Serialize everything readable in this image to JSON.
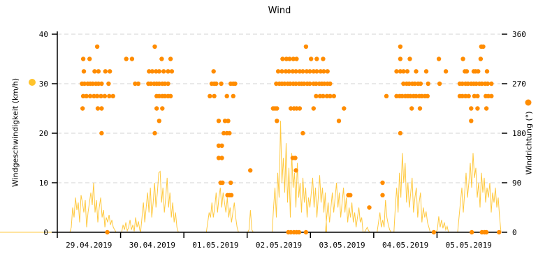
{
  "title": "Wind",
  "colors": {
    "speed_line": "#FFC32B",
    "direction_dot": "#FF8C00",
    "grid": "#D3D3D3",
    "axis": "#000000"
  },
  "chart_data": {
    "type": "line+scatter",
    "title": "Wind",
    "x_axis": {
      "labels": [
        "29.04.2019",
        "30.04.2019",
        "01.05.2019",
        "02.05.2019",
        "03.05.2019",
        "04.05.2019",
        "05.05.2019"
      ],
      "range_days": 7,
      "grid": "off"
    },
    "left_axis": {
      "label": "Windgeschwindigkeit (km/h)",
      "ticks": [
        0,
        10,
        20,
        30,
        40
      ],
      "range": [
        0,
        40
      ],
      "grid": "horizontal-dashed"
    },
    "right_axis": {
      "label": "Windrichtung (°)",
      "ticks": [
        0,
        90,
        180,
        270,
        360
      ],
      "range": [
        0,
        360
      ]
    },
    "legend": "colored dot beside each axis marks its series",
    "series": [
      {
        "name": "Windgeschwindigkeit",
        "type": "line",
        "axis": "left",
        "color": "#FFC32B",
        "unit": "km/h",
        "segments": [
          {
            "t0": 0.221,
            "dt": 0.0221,
            "values": [
              1,
              5,
              3,
              7,
              4.5,
              6,
              2,
              7.5,
              6,
              4,
              6.5,
              1,
              4,
              6,
              8,
              5.5,
              10,
              4,
              6.5,
              2,
              5,
              7,
              3,
              4.5,
              1,
              3,
              2,
              3.5,
              1.5,
              2.5,
              1,
              0.5
            ]
          },
          {
            "t0": 1.039,
            "dt": 0.0221,
            "values": [
              1.5,
              0.5,
              2,
              0.3,
              1,
              2.5,
              0.5,
              1.5,
              0.2,
              3,
              1,
              2.2,
              0.4
            ]
          },
          {
            "t0": 1.338,
            "dt": 0.0221,
            "values": [
              3,
              6,
              2,
              5,
              8,
              4,
              9,
              3,
              6,
              10,
              5,
              8,
              12,
              12.3,
              6,
              9,
              4,
              7,
              11,
              5,
              8,
              3,
              6,
              2,
              4,
              1
            ]
          },
          {
            "t0": 2.377,
            "dt": 0.0221,
            "values": [
              2,
              4,
              3,
              6,
              3,
              5,
              8,
              4,
              7,
              9,
              5,
              8,
              6,
              4,
              7,
              3,
              5,
              2,
              4,
              6,
              3,
              1
            ]
          },
          {
            "t0": 3.03,
            "dt": 0.0221,
            "values": [
              0.5,
              4.5,
              0.5
            ]
          },
          {
            "t0": 3.417,
            "dt": 0.0221,
            "values": [
              5,
              9,
              3,
              12,
              7,
              22.5,
              10,
              15,
              8,
              18,
              6,
              13,
              3,
              16,
              9,
              12,
              5,
              14,
              7,
              10,
              4,
              11,
              6,
              9,
              3,
              7,
              5,
              8,
              11,
              5,
              9,
              3,
              7,
              11.5,
              6,
              9,
              4,
              8
            ]
          },
          {
            "t0": 4.257,
            "dt": 0.0221,
            "values": [
              3,
              6,
              2,
              5,
              8,
              4,
              7,
              10,
              5,
              8,
              3,
              6,
              9,
              4,
              7,
              2,
              5,
              3,
              6,
              2,
              4,
              1,
              3,
              5,
              2,
              3
            ]
          },
          {
            "t0": 4.876,
            "dt": 0.0221,
            "values": [
              0.5,
              1,
              0.3
            ]
          },
          {
            "t0": 5.075,
            "dt": 0.0221,
            "values": [
              2,
              4,
              1,
              2.5,
              1,
              6.5,
              3,
              1.5,
              0.5
            ]
          },
          {
            "t0": 5.341,
            "dt": 0.0221,
            "values": [
              5,
              9,
              4,
              12,
              7,
              16,
              10,
              14,
              6,
              10,
              5,
              8,
              11,
              4,
              7,
              9,
              3,
              6,
              8,
              2,
              5,
              3,
              4.2,
              2,
              1
            ]
          },
          {
            "t0": 6.005,
            "dt": 0.0221,
            "values": [
              0.5,
              3.2,
              1,
              2.5,
              0.8,
              2,
              0.5,
              1.2
            ]
          },
          {
            "t0": 6.348,
            "dt": 0.0221,
            "values": [
              3,
              6,
              9,
              4,
              8,
              12,
              7,
              10,
              14,
              9,
              16,
              11,
              13,
              7,
              10,
              5,
              12,
              8,
              11,
              6,
              9,
              7,
              10,
              4,
              8,
              6,
              9,
              5,
              7,
              3
            ]
          }
        ]
      },
      {
        "name": "Windrichtung",
        "type": "scatter",
        "axis": "right",
        "color": "#FF8C00",
        "unit": "deg",
        "points_by_direction": [
          {
            "deg": 337.5,
            "t": [
              0.63,
              1.54,
              3.93,
              5.42,
              6.7,
              6.73
            ]
          },
          {
            "deg": 315,
            "t": [
              0.41,
              0.51,
              1.09,
              1.18,
              1.65,
              1.79,
              3.56,
              3.62,
              3.67,
              3.73,
              3.78,
              4.01,
              4.1,
              4.2,
              5.42,
              5.57,
              6.03,
              6.41,
              6.69
            ]
          },
          {
            "deg": 292.5,
            "t": [
              0.42,
              0.59,
              0.65,
              0.76,
              0.83,
              1.45,
              1.5,
              1.56,
              1.61,
              1.68,
              1.75,
              1.81,
              2.47,
              3.49,
              3.55,
              3.61,
              3.66,
              3.72,
              3.77,
              3.83,
              3.88,
              3.94,
              3.99,
              4.05,
              4.1,
              4.16,
              4.21,
              4.27,
              5.36,
              5.42,
              5.47,
              5.53,
              5.67,
              5.83,
              6.14,
              6.44,
              6.47,
              6.58,
              6.61,
              6.65,
              6.79
            ]
          },
          {
            "deg": 270,
            "t": [
              0.39,
              0.43,
              0.48,
              0.52,
              0.56,
              0.61,
              0.65,
              0.7,
              0.81,
              1.23,
              1.28,
              1.44,
              1.48,
              1.53,
              1.57,
              1.61,
              1.66,
              1.7,
              1.75,
              2.44,
              2.48,
              2.51,
              2.59,
              2.74,
              2.78,
              2.81,
              3.46,
              3.51,
              3.55,
              3.59,
              3.64,
              3.68,
              3.73,
              3.77,
              3.82,
              3.86,
              3.9,
              3.95,
              3.99,
              4.05,
              4.09,
              4.14,
              4.18,
              4.22,
              4.27,
              4.31,
              5.47,
              5.52,
              5.56,
              5.61,
              5.65,
              5.7,
              5.74,
              5.86,
              6.04,
              6.36,
              6.4,
              6.45,
              6.49,
              6.54,
              6.58,
              6.62,
              6.67,
              6.71,
              6.76,
              6.8,
              6.86
            ]
          },
          {
            "deg": 247.5,
            "t": [
              0.41,
              0.46,
              0.52,
              0.58,
              0.63,
              0.69,
              0.75,
              0.82,
              0.88,
              1.57,
              1.61,
              1.66,
              1.7,
              1.75,
              1.79,
              2.41,
              2.48,
              2.68,
              2.78,
              4.09,
              4.15,
              4.2,
              4.26,
              4.31,
              4.37,
              5.2,
              5.36,
              5.41,
              5.45,
              5.5,
              5.54,
              5.58,
              5.63,
              5.67,
              5.72,
              5.76,
              5.81,
              5.85,
              6.36,
              6.4,
              6.45,
              6.5,
              6.59,
              6.64,
              6.77,
              6.81,
              6.86
            ]
          },
          {
            "deg": 225,
            "t": [
              0.4,
              0.64,
              0.7,
              1.57,
              1.66,
              3.41,
              3.44,
              3.47,
              3.69,
              3.74,
              3.78,
              3.83,
              4.05,
              4.53,
              5.6,
              5.73,
              6.54,
              6.64,
              6.78
            ]
          },
          {
            "deg": 202.5,
            "t": [
              1.61,
              2.55,
              2.65,
              2.7,
              3.47,
              4.45,
              6.54
            ]
          },
          {
            "deg": 180,
            "t": [
              0.7,
              1.54,
              2.63,
              2.68,
              2.72,
              3.88,
              5.42
            ]
          },
          {
            "deg": 157.5,
            "t": [
              2.55,
              2.6
            ]
          },
          {
            "deg": 135,
            "t": [
              2.55,
              2.6,
              3.72,
              3.76
            ]
          },
          {
            "deg": 112.5,
            "t": [
              3.05,
              3.77
            ]
          },
          {
            "deg": 90,
            "t": [
              2.58,
              2.61,
              2.74,
              5.14
            ]
          },
          {
            "deg": 67.5,
            "t": [
              2.69,
              2.72,
              2.75,
              4.6,
              4.63,
              5.14
            ]
          },
          {
            "deg": 45,
            "t": [
              4.93
            ]
          },
          {
            "deg": 0,
            "t": [
              0.79,
              3.65,
              3.69,
              3.74,
              3.78,
              3.82,
              3.93,
              5.95,
              6.55,
              6.71,
              6.75,
              6.78,
              6.98
            ]
          }
        ]
      }
    ]
  }
}
